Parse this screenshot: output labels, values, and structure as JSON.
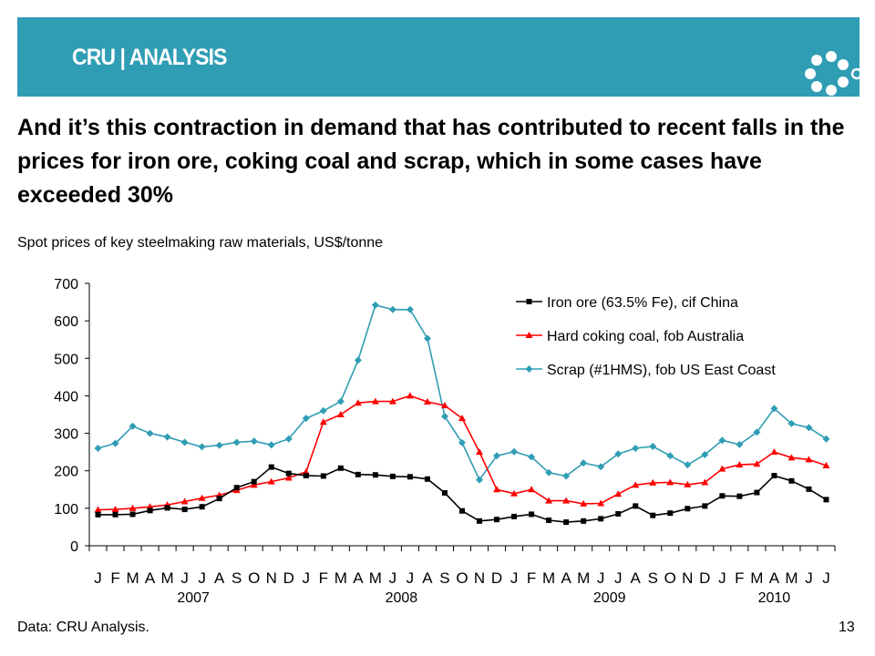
{
  "header": {
    "logo_text": "CRU | ANALYSIS",
    "brand_color": "#2f9db4",
    "logo_icon": "ring-of-dots-icon"
  },
  "title": "And it’s this contraction in demand that has contributed to recent falls in the prices for iron ore, coking coal and scrap, which in some cases have exceeded 30%",
  "subtitle": "Spot prices of key steelmaking raw materials, US$/tonne",
  "source": "Data: CRU Analysis.",
  "page_number": "13",
  "chart_data": {
    "type": "line",
    "title": "",
    "xlabel": "",
    "ylabel": "",
    "ylim": [
      0,
      700
    ],
    "yticks": [
      0,
      100,
      200,
      300,
      400,
      500,
      600,
      700
    ],
    "grid": false,
    "legend_position": "top-right",
    "x": [
      "J",
      "F",
      "M",
      "A",
      "M",
      "J",
      "J",
      "A",
      "S",
      "O",
      "N",
      "D",
      "J",
      "F",
      "M",
      "A",
      "M",
      "J",
      "J",
      "A",
      "S",
      "O",
      "N",
      "D",
      "J",
      "F",
      "M",
      "A",
      "M",
      "J",
      "J",
      "A",
      "S",
      "O",
      "N",
      "D",
      "J",
      "F",
      "M",
      "A",
      "M",
      "J",
      "J"
    ],
    "year_labels": [
      {
        "label": "2007",
        "start": 0,
        "end": 11
      },
      {
        "label": "2008",
        "start": 12,
        "end": 23
      },
      {
        "label": "2009",
        "start": 24,
        "end": 35
      },
      {
        "label": "2010",
        "start": 36,
        "end": 42
      }
    ],
    "series": [
      {
        "name": "Iron ore (63.5% Fe), cif China",
        "color": "#000000",
        "marker": "square",
        "values": [
          83,
          83,
          84,
          94,
          101,
          97,
          104,
          126,
          155,
          171,
          210,
          193,
          187,
          186,
          207,
          190,
          189,
          185,
          184,
          178,
          141,
          93,
          66,
          70,
          78,
          84,
          68,
          63,
          66,
          72,
          85,
          106,
          81,
          87,
          99,
          106,
          133,
          132,
          142,
          187,
          173,
          151,
          123
        ]
      },
      {
        "name": "Hard coking coal, fob Australia",
        "color": "#ff0000",
        "marker": "triangle",
        "values": [
          96,
          97,
          100,
          104,
          109,
          118,
          127,
          135,
          148,
          162,
          171,
          181,
          197,
          330,
          350,
          381,
          385,
          385,
          400,
          384,
          374,
          340,
          250,
          150,
          139,
          150,
          120,
          120,
          112,
          113,
          138,
          162,
          168,
          169,
          163,
          169,
          205,
          216,
          218,
          250,
          235,
          230,
          214
        ]
      },
      {
        "name": "Scrap (#1HMS), fob US East Coast",
        "color": "#2f9db4",
        "marker": "diamond",
        "values": [
          260,
          273,
          319,
          300,
          290,
          276,
          264,
          268,
          276,
          279,
          269,
          285,
          340,
          360,
          385,
          495,
          642,
          630,
          630,
          553,
          345,
          275,
          176,
          240,
          251,
          237,
          195,
          186,
          221,
          211,
          245,
          260,
          265,
          240,
          216,
          243,
          281,
          270,
          303,
          366,
          326,
          315,
          285
        ]
      }
    ]
  }
}
